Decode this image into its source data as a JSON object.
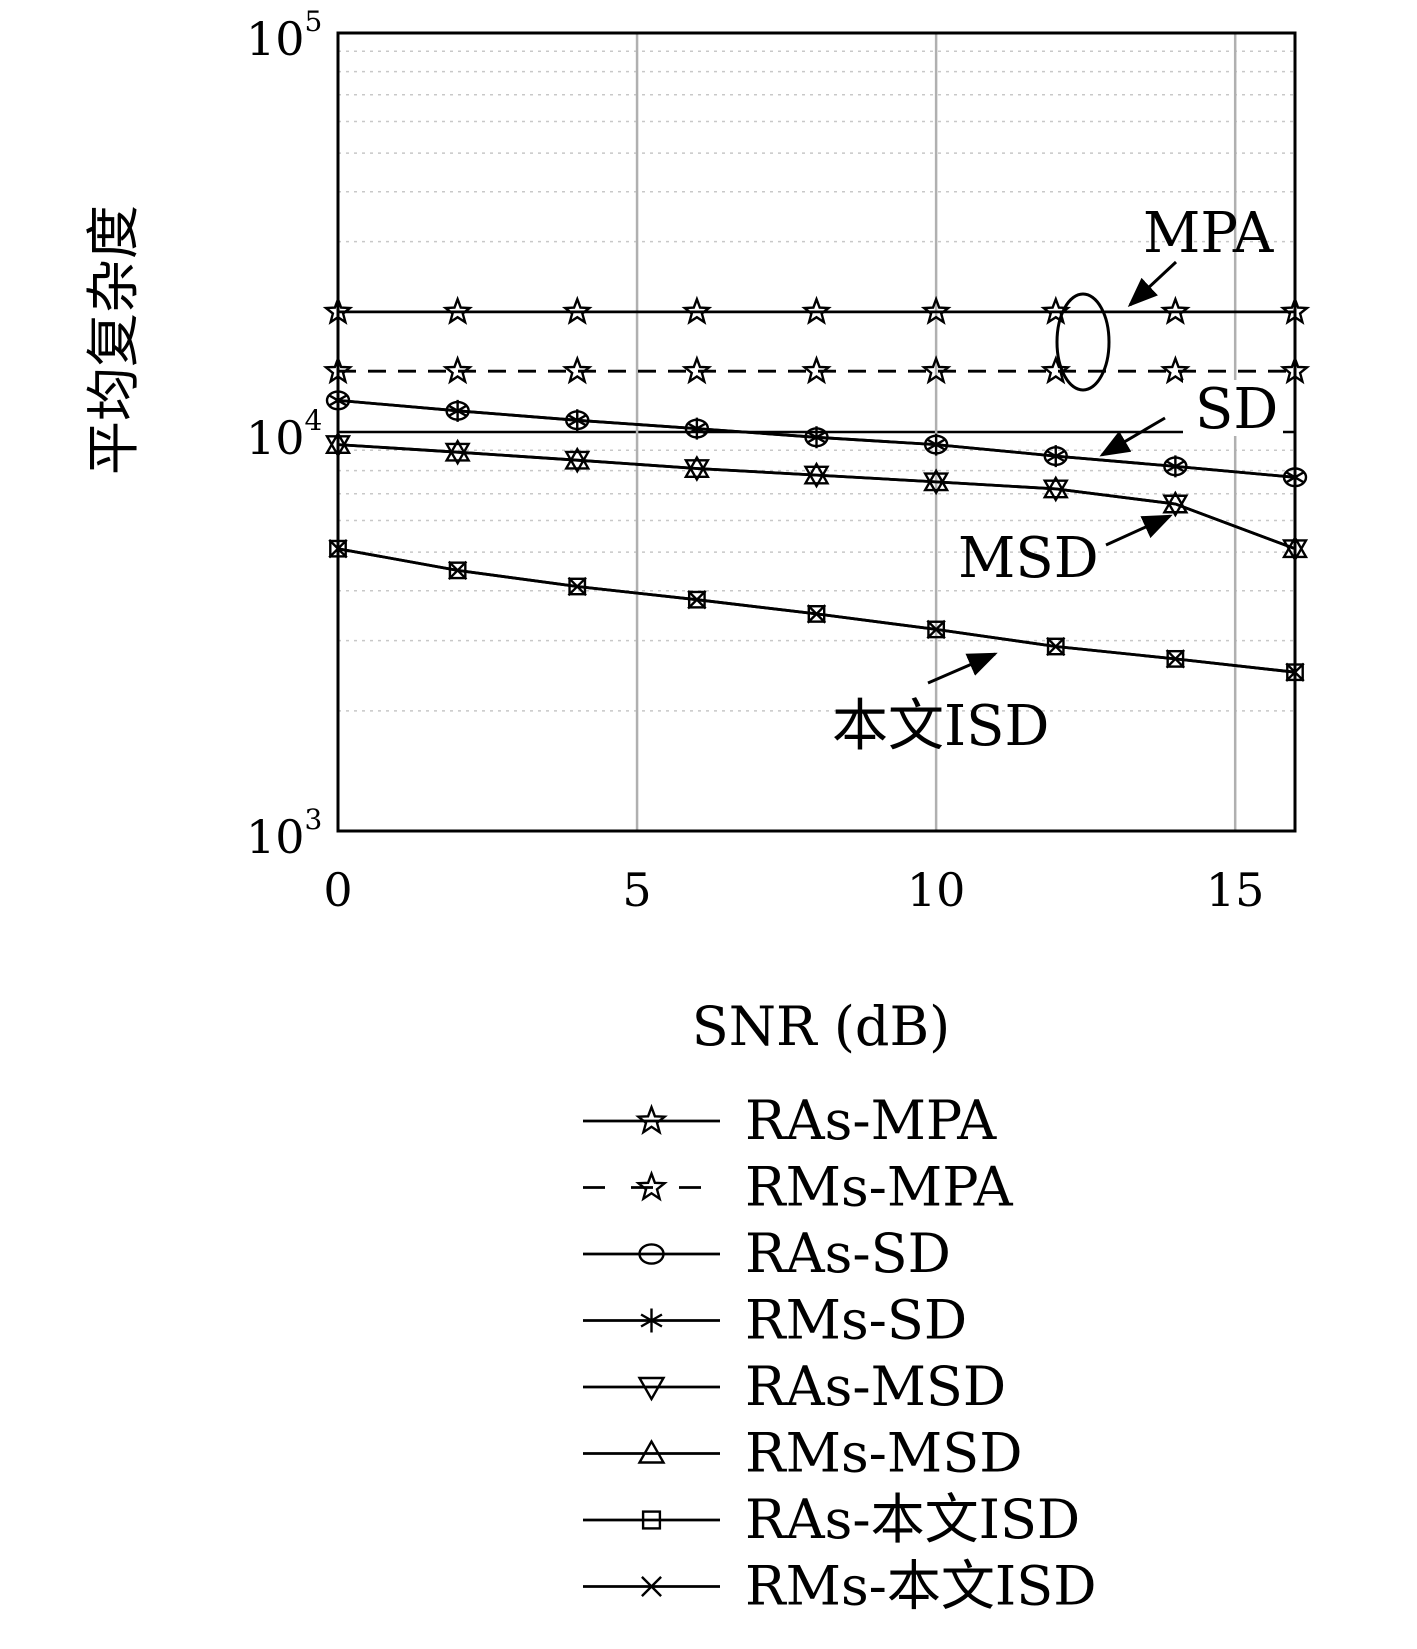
{
  "chart_data": {
    "type": "line",
    "xlabel": "SNR (dB)",
    "ylabel": "平均复杂度",
    "xlim": [
      0,
      16
    ],
    "ylim": [
      1000,
      100000
    ],
    "y_scale": "log",
    "grid": true,
    "xticks": [
      0,
      5,
      10,
      15
    ],
    "xtick_labels": [
      "0",
      "5",
      "10",
      "15"
    ],
    "yticks": [
      {
        "value": 1000,
        "base": "10",
        "exp": "3"
      },
      {
        "value": 10000,
        "base": "10",
        "exp": "4"
      },
      {
        "value": 100000,
        "base": "10",
        "exp": "5"
      }
    ],
    "x": [
      0,
      2,
      4,
      6,
      8,
      10,
      12,
      14,
      16
    ],
    "series": [
      {
        "name": "RAs-MPA",
        "marker": "star",
        "line": "solid",
        "values": [
          20000,
          20000,
          20000,
          20000,
          20000,
          20000,
          20000,
          20000,
          20000
        ]
      },
      {
        "name": "RMs-MPA",
        "marker": "star",
        "line": "dashed",
        "values": [
          14200,
          14200,
          14200,
          14200,
          14200,
          14200,
          14200,
          14200,
          14200
        ]
      },
      {
        "name": "RAs-SD",
        "marker": "circle",
        "line": "solid",
        "values": [
          12000,
          11300,
          10700,
          10200,
          9700,
          9300,
          8700,
          8200,
          7700
        ]
      },
      {
        "name": "RMs-SD",
        "marker": "asterisk",
        "line": "solid",
        "values": [
          12000,
          11300,
          10700,
          10200,
          9700,
          9300,
          8700,
          8200,
          7700
        ]
      },
      {
        "name": "RAs-MSD",
        "marker": "triangle-down",
        "line": "solid",
        "values": [
          9300,
          8900,
          8500,
          8100,
          7800,
          7500,
          7200,
          6600,
          5100
        ]
      },
      {
        "name": "RMs-MSD",
        "marker": "triangle-up",
        "line": "solid",
        "values": [
          9300,
          8900,
          8500,
          8100,
          7800,
          7500,
          7200,
          6600,
          5100
        ]
      },
      {
        "name": "RAs-本文ISD",
        "marker": "square",
        "line": "solid",
        "values": [
          5100,
          4500,
          4100,
          3800,
          3500,
          3200,
          2900,
          2700,
          2500
        ]
      },
      {
        "name": "RMs-本文ISD",
        "marker": "x",
        "line": "solid",
        "values": [
          5100,
          4500,
          4100,
          3800,
          3500,
          3200,
          2900,
          2700,
          2500
        ]
      }
    ],
    "annotations": [
      {
        "text": "MPA"
      },
      {
        "text": "SD"
      },
      {
        "text": "MSD"
      },
      {
        "text": "本文ISD"
      }
    ],
    "legend_position": "below"
  }
}
